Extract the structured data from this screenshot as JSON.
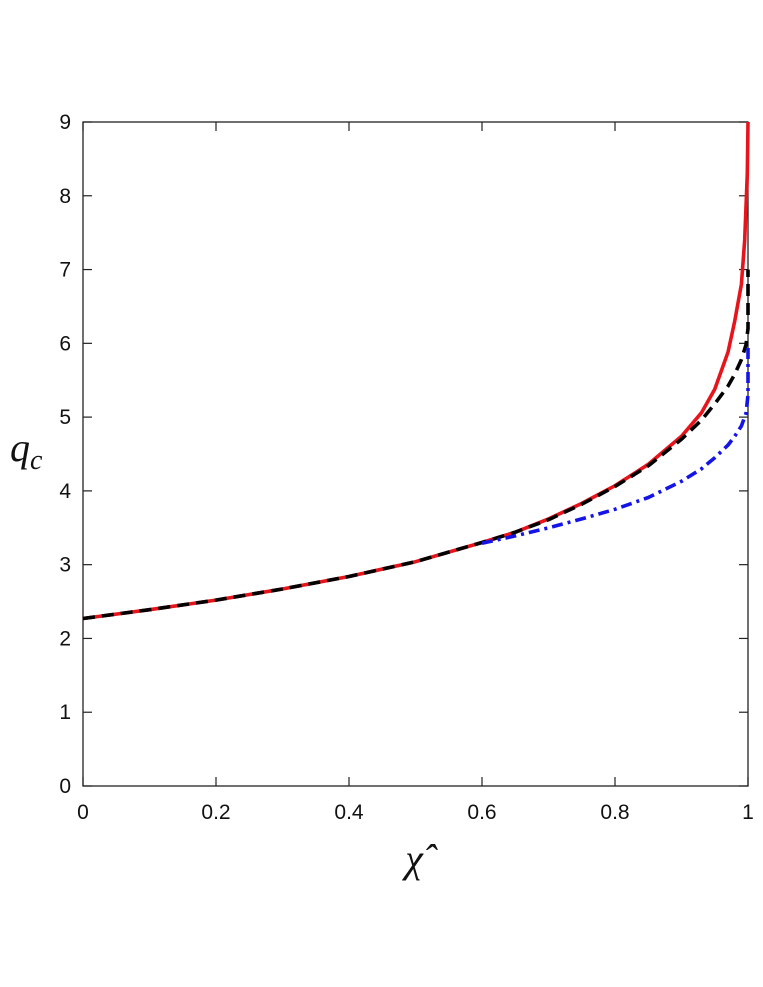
{
  "chart_data": {
    "type": "line",
    "title": "",
    "xlabel": "χ̂",
    "ylabel": "q",
    "ylabel_subscript": "c",
    "xlim": [
      0,
      1
    ],
    "ylim": [
      0,
      9
    ],
    "grid": false,
    "x_ticks": [
      0,
      0.2,
      0.4,
      0.6,
      0.8,
      1
    ],
    "x_tick_labels": [
      "0",
      "0.2",
      "0.4",
      "0.6",
      "0.8",
      "1"
    ],
    "y_ticks": [
      0,
      1,
      2,
      3,
      4,
      5,
      6,
      7,
      8,
      9
    ],
    "y_tick_labels": [
      "0",
      "1",
      "2",
      "3",
      "4",
      "5",
      "6",
      "7",
      "8",
      "9"
    ],
    "series": [
      {
        "color": "#e8141c",
        "style": "solid",
        "x": [
          0,
          0.1,
          0.2,
          0.3,
          0.4,
          0.5,
          0.6,
          0.65,
          0.7,
          0.75,
          0.8,
          0.85,
          0.9,
          0.93,
          0.95,
          0.97,
          0.98,
          0.99,
          0.995,
          0.999,
          1.0
        ],
        "y": [
          2.27,
          2.39,
          2.52,
          2.67,
          2.84,
          3.04,
          3.3,
          3.44,
          3.62,
          3.83,
          4.07,
          4.36,
          4.74,
          5.06,
          5.38,
          5.88,
          6.3,
          6.8,
          7.4,
          8.3,
          9.0
        ]
      },
      {
        "color": "#000000",
        "style": "dashed",
        "x": [
          0,
          0.1,
          0.2,
          0.3,
          0.4,
          0.5,
          0.6,
          0.65,
          0.7,
          0.75,
          0.8,
          0.85,
          0.9,
          0.93,
          0.95,
          0.97,
          0.98,
          0.99,
          0.997,
          1.0,
          1.0
        ],
        "y": [
          2.27,
          2.39,
          2.52,
          2.67,
          2.84,
          3.04,
          3.3,
          3.44,
          3.61,
          3.82,
          4.06,
          4.34,
          4.7,
          4.96,
          5.18,
          5.42,
          5.58,
          5.78,
          5.98,
          6.2,
          7.0
        ]
      },
      {
        "color": "#1414e6",
        "style": "dashdot",
        "x": [
          0.6,
          0.65,
          0.7,
          0.75,
          0.8,
          0.85,
          0.9,
          0.93,
          0.95,
          0.97,
          0.98,
          0.99,
          0.997,
          1.0,
          1.0
        ],
        "y": [
          3.29,
          3.39,
          3.5,
          3.62,
          3.75,
          3.91,
          4.13,
          4.3,
          4.45,
          4.62,
          4.74,
          4.88,
          5.05,
          5.3,
          6.0
        ]
      }
    ]
  }
}
